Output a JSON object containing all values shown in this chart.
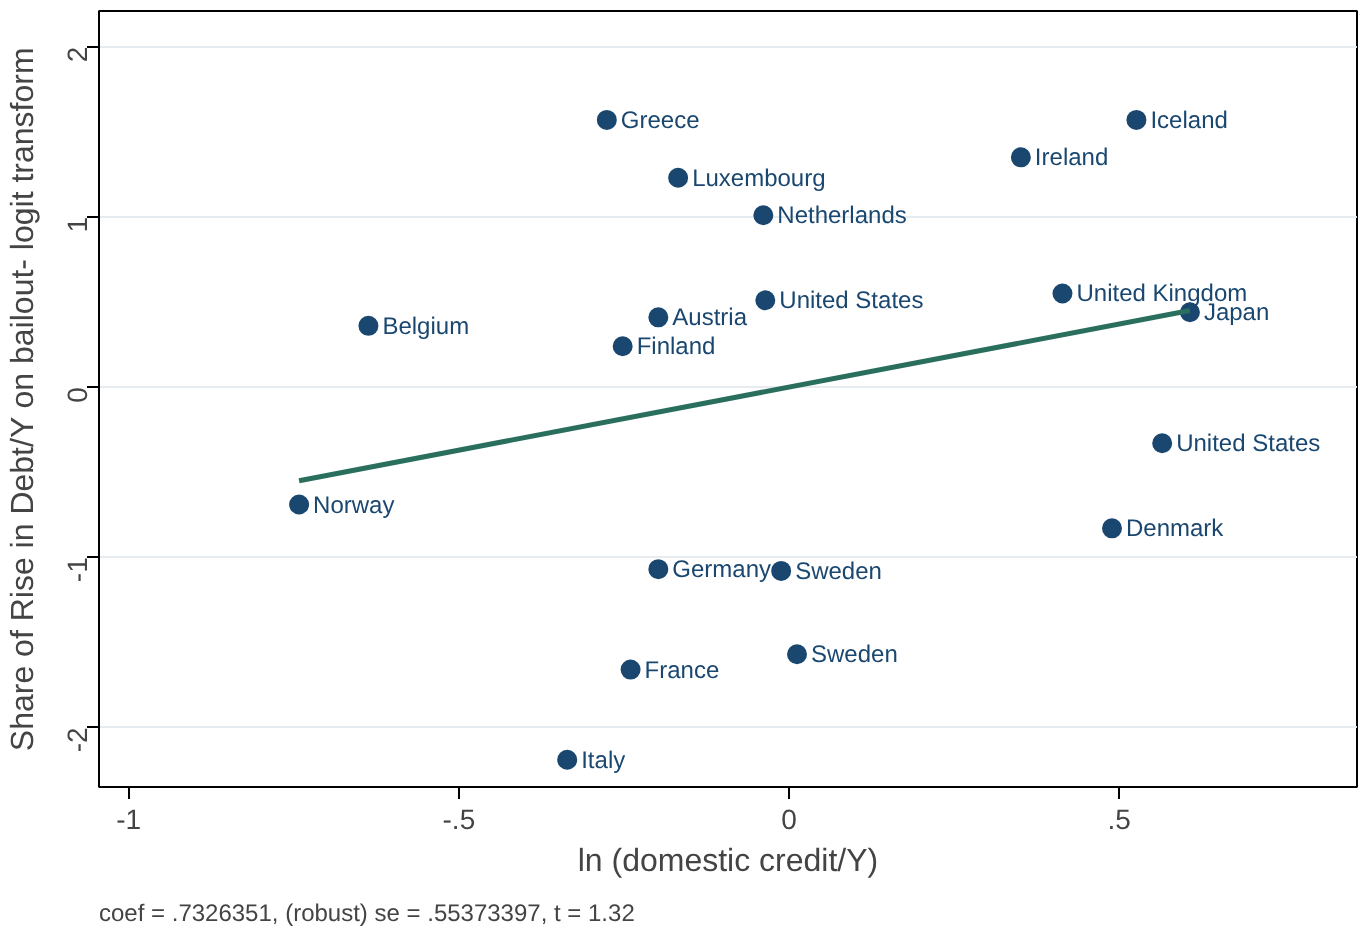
{
  "chart_data": {
    "type": "scatter",
    "xlabel": "ln (domestic credit/Y)",
    "ylabel": "Share of Rise in Debt/Y on bailout- logit transform",
    "xlim": [
      -1.045,
      0.86
    ],
    "ylim": [
      -2.35,
      2.21
    ],
    "xticks": [
      {
        "value": -1,
        "label": "-1"
      },
      {
        "value": -0.5,
        "label": "-.5"
      },
      0,
      {
        "value": 0.5,
        "label": ".5"
      }
    ],
    "yticks": [
      -2,
      -1,
      0,
      1,
      2
    ],
    "grid": "y",
    "series": [
      {
        "type": "scatter",
        "marker": "circle",
        "color": "#1a476f",
        "x": [
          -0.276,
          0.526,
          0.351,
          -0.168,
          -0.039,
          -0.637,
          -0.198,
          -0.036,
          0.414,
          0.607,
          -0.252,
          0.565,
          -0.742,
          0.489,
          -0.198,
          -0.012,
          0.012,
          -0.24,
          -0.336
        ],
        "values": [
          1.57,
          1.57,
          1.35,
          1.23,
          1.01,
          0.36,
          0.41,
          0.51,
          0.55,
          0.44,
          0.24,
          -0.33,
          -0.69,
          -0.83,
          -1.07,
          -1.08,
          -1.57,
          -1.66,
          -2.19
        ],
        "value_labels": [
          "Greece",
          "Iceland",
          "Ireland",
          "Luxembourg",
          "Netherlands",
          "Belgium",
          "Austria",
          "United States",
          "United Kingdom",
          "Japan",
          "Finland",
          "United States",
          "Norway",
          "Denmark",
          "Germany",
          "Sweden",
          "Sweden",
          "France",
          "Italy"
        ]
      },
      {
        "type": "line",
        "color": "#2a6e5e",
        "x": [
          -0.742,
          0.607
        ],
        "values": [
          -0.55,
          0.45
        ]
      }
    ],
    "annotations": [
      "coef = .7326351, (robust) se = .55373397, t = 1.32"
    ]
  }
}
